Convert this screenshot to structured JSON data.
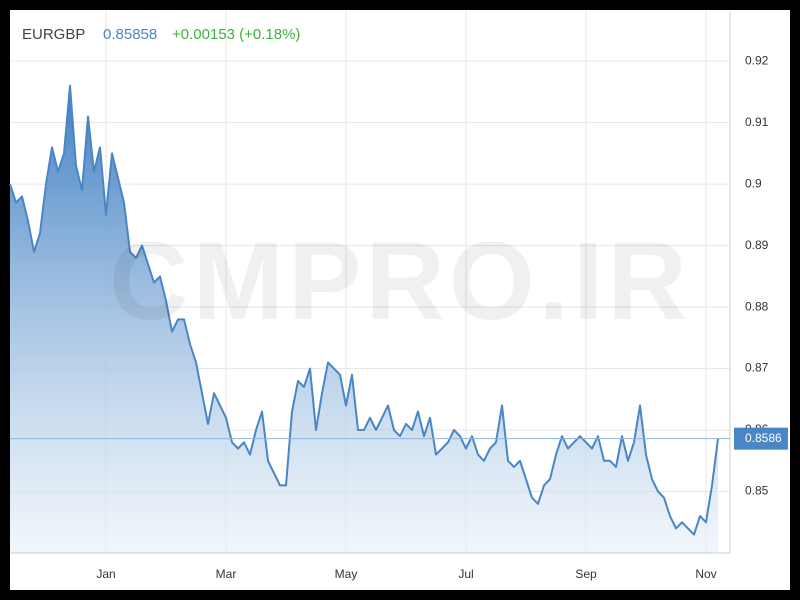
{
  "chart_data": {
    "type": "area",
    "symbol": "EURGBP",
    "price": "0.85858",
    "change": "+0.00153 (+0.18%)",
    "watermark": "CMPRO.IR",
    "last_price": 0.8586,
    "grid": true,
    "xlim": [
      -0.6,
      11.4
    ],
    "ylim": [
      0.84,
      0.928
    ],
    "xticks": [
      {
        "value": 1,
        "label": "Jan"
      },
      {
        "value": 3,
        "label": "Mar"
      },
      {
        "value": 5,
        "label": "May"
      },
      {
        "value": 7,
        "label": "Jul"
      },
      {
        "value": 9,
        "label": "Sep"
      },
      {
        "value": 11,
        "label": "Nov"
      }
    ],
    "yticks": [
      0.85,
      0.86,
      0.87,
      0.88,
      0.89,
      0.9,
      0.91,
      0.92
    ],
    "x": [
      -0.6,
      -0.5,
      -0.4,
      -0.3,
      -0.2,
      -0.1,
      0,
      0.1,
      0.2,
      0.3,
      0.4,
      0.5,
      0.6,
      0.7,
      0.8,
      0.9,
      1,
      1.1,
      1.2,
      1.3,
      1.4,
      1.5,
      1.6,
      1.7,
      1.8,
      1.9,
      2,
      2.1,
      2.2,
      2.3,
      2.4,
      2.5,
      2.6,
      2.7,
      2.8,
      2.9,
      3,
      3.1,
      3.2,
      3.3,
      3.4,
      3.5,
      3.6,
      3.7,
      3.8,
      3.9,
      4,
      4.1,
      4.2,
      4.3,
      4.4,
      4.5,
      4.6,
      4.7,
      4.8,
      4.9,
      5,
      5.1,
      5.2,
      5.3,
      5.4,
      5.5,
      5.6,
      5.7,
      5.8,
      5.9,
      6,
      6.1,
      6.2,
      6.3,
      6.4,
      6.5,
      6.6,
      6.7,
      6.8,
      6.9,
      7,
      7.1,
      7.2,
      7.3,
      7.4,
      7.5,
      7.6,
      7.7,
      7.8,
      7.9,
      8,
      8.1,
      8.2,
      8.3,
      8.4,
      8.5,
      8.6,
      8.7,
      8.8,
      8.9,
      9,
      9.1,
      9.2,
      9.3,
      9.4,
      9.5,
      9.6,
      9.7,
      9.8,
      9.9,
      10,
      10.1,
      10.2,
      10.3,
      10.4,
      10.5,
      10.6,
      10.7,
      10.8,
      10.9,
      11,
      11.1,
      11.2
    ],
    "series": [
      {
        "name": "EURGBP",
        "color": "#4a86c5",
        "values": [
          0.9,
          0.897,
          0.898,
          0.894,
          0.889,
          0.892,
          0.9,
          0.906,
          0.902,
          0.905,
          0.916,
          0.903,
          0.899,
          0.911,
          0.902,
          0.906,
          0.895,
          0.905,
          0.901,
          0.897,
          0.889,
          0.888,
          0.89,
          0.887,
          0.884,
          0.885,
          0.881,
          0.876,
          0.878,
          0.878,
          0.874,
          0.871,
          0.866,
          0.861,
          0.866,
          0.864,
          0.862,
          0.858,
          0.857,
          0.858,
          0.856,
          0.86,
          0.863,
          0.855,
          0.853,
          0.851,
          0.851,
          0.863,
          0.868,
          0.867,
          0.87,
          0.86,
          0.866,
          0.871,
          0.87,
          0.869,
          0.864,
          0.869,
          0.86,
          0.86,
          0.862,
          0.86,
          0.862,
          0.864,
          0.86,
          0.859,
          0.861,
          0.86,
          0.863,
          0.859,
          0.862,
          0.856,
          0.857,
          0.858,
          0.86,
          0.859,
          0.857,
          0.859,
          0.856,
          0.855,
          0.857,
          0.858,
          0.864,
          0.855,
          0.854,
          0.855,
          0.852,
          0.849,
          0.848,
          0.851,
          0.852,
          0.856,
          0.859,
          0.857,
          0.858,
          0.859,
          0.858,
          0.857,
          0.859,
          0.855,
          0.855,
          0.854,
          0.859,
          0.855,
          0.858,
          0.864,
          0.856,
          0.852,
          0.85,
          0.849,
          0.846,
          0.844,
          0.845,
          0.844,
          0.843,
          0.846,
          0.845,
          0.851,
          0.8586
        ]
      }
    ]
  }
}
